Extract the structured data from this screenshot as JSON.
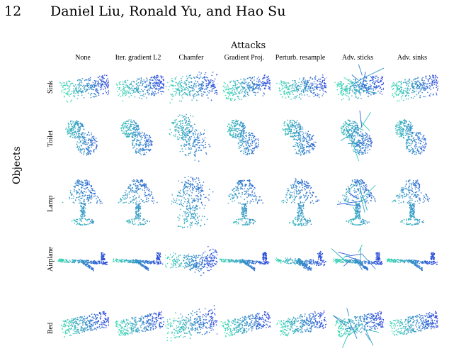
{
  "header": {
    "page_number": "12",
    "authors": "Daniel Liu, Ronald Yu, and Hao Su"
  },
  "figure": {
    "column_axis_title": "Attacks",
    "row_axis_title": "Objects",
    "columns": [
      "None",
      "Iter. gradient L2",
      "Chamfer",
      "Gradient Proj.",
      "Perturb. resample",
      "Adv. sticks",
      "Adv. sinks"
    ],
    "rows": [
      "Sink",
      "Toilet",
      "Lamp",
      "Airplane",
      "Bed"
    ],
    "colors": {
      "teal": "#3de0b0",
      "blue": "#2b3fe0"
    }
  }
}
